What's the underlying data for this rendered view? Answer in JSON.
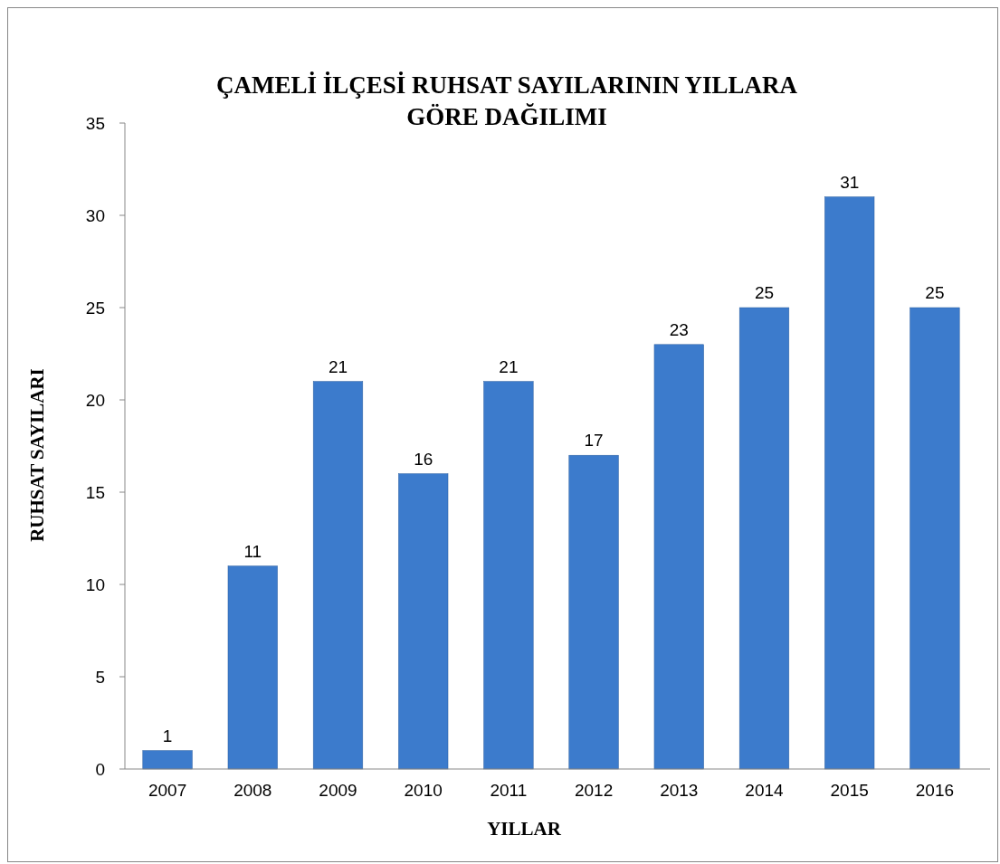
{
  "chart_data": {
    "type": "bar",
    "title": "ÇAMELİ İLÇESİ RUHSAT SAYILARININ YILLARA\nGÖRE  DAĞILIMI",
    "xlabel": "YILLAR",
    "ylabel": "RUHSAT SAYILARI",
    "categories": [
      "2007",
      "2008",
      "2009",
      "2010",
      "2011",
      "2012",
      "2013",
      "2014",
      "2015",
      "2016"
    ],
    "values": [
      1,
      11,
      21,
      16,
      21,
      17,
      23,
      25,
      31,
      25
    ],
    "color": "#3c7bcc",
    "ylim": [
      0,
      35
    ],
    "yticks": [
      0,
      5,
      10,
      15,
      20,
      25,
      30,
      35
    ],
    "grid": false,
    "data_labels": true
  }
}
